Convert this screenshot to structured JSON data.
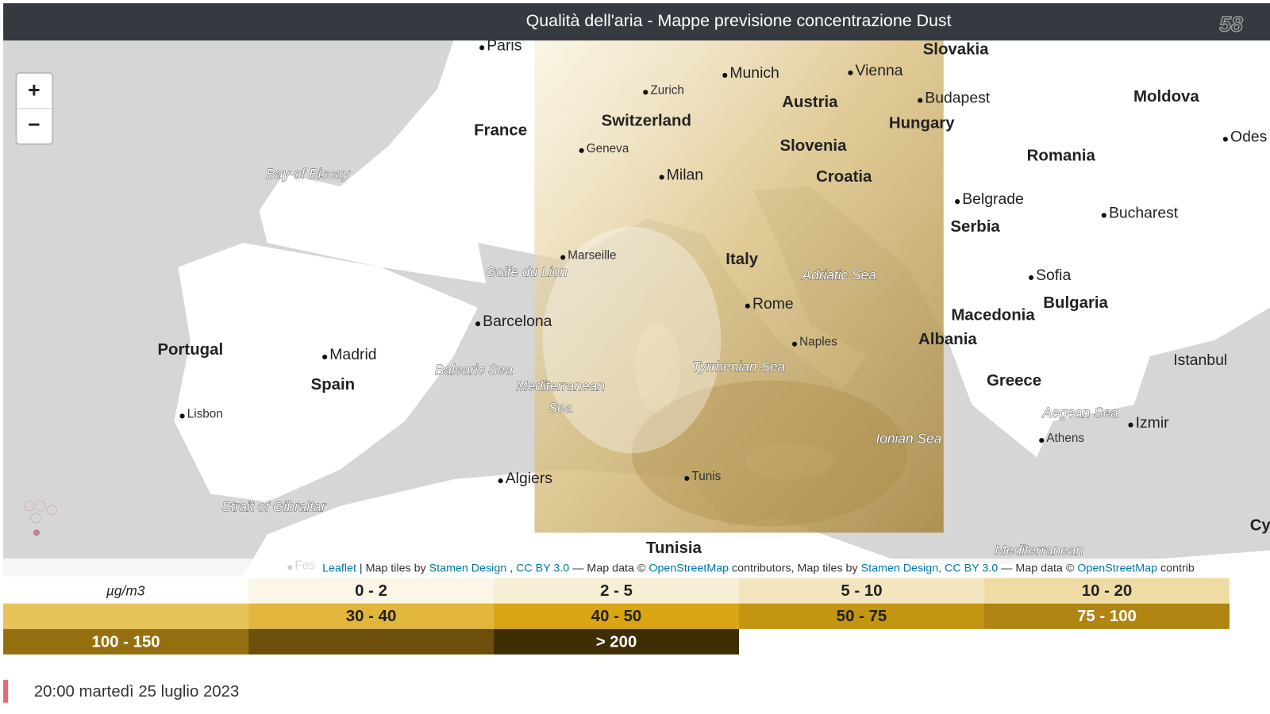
{
  "header": {
    "title": "Qualità dell'aria - Mappe previsione concentrazione Dust",
    "logo": "58"
  },
  "map": {
    "zoom_in": "+",
    "zoom_out": "−",
    "labels": [
      "Paris",
      "Slovakia",
      "Munich",
      "Vienna",
      "Zurich",
      "Austria",
      "Budapest",
      "Moldova",
      "France",
      "Switzerland",
      "Hungary",
      "Odes",
      "Slovenia",
      "Geneva",
      "Romania",
      "Bay of Biscay",
      "Milan",
      "Croatia",
      "Belgrade",
      "Bucharest",
      "Serbia",
      "Marseille",
      "Italy",
      "Golfe du Lion",
      "Adriatic Sea",
      "Sofia",
      "Bulgaria",
      "Macedonia",
      "Rome",
      "Barcelona",
      "Albania",
      "Naples",
      "Portugal",
      "Madrid",
      "Istanbul",
      "Tyrrhenian Sea",
      "Balearic Sea",
      "Greece",
      "Spain",
      "Mediterranean",
      "Sea",
      "Aegean Sea",
      "Izmir",
      "Lisbon",
      "Athens",
      "Ionian Sea",
      "Algiers",
      "Tunis",
      "Strait of Gibraltar",
      "Cy",
      "Tunisia",
      "Mediterranean",
      "Fes"
    ],
    "attribution": [
      {
        "text": "Leaflet",
        "link": true
      },
      {
        "text": "| Map tiles by",
        "link": false
      },
      {
        "text": "Stamen Design",
        "link": true
      },
      {
        "text": ",",
        "link": false
      },
      {
        "text": "CC BY 3.0",
        "link": true
      },
      {
        "text": "— Map data ©",
        "link": false
      },
      {
        "text": "OpenStreetMap",
        "link": true
      },
      {
        "text": "contributors, Map tiles by",
        "link": false
      },
      {
        "text": "Stamen Design, CC BY 3.0",
        "link": true
      },
      {
        "text": "— Map data ©",
        "link": false
      },
      {
        "text": "OpenStreetMap",
        "link": true
      },
      {
        "text": "contrib",
        "link": false
      }
    ]
  },
  "legend": {
    "unit": "µg/m3",
    "items": [
      {
        "label": "0 - 2",
        "color": "#fbf6e6"
      },
      {
        "label": "2 - 5",
        "color": "#f7efd5"
      },
      {
        "label": "5 - 10",
        "color": "#f3e6bf"
      },
      {
        "label": "10 - 20",
        "color": "#efdca4"
      },
      {
        "color": "#e7c35a"
      },
      {
        "label": "30 - 40",
        "color": "#e2b53c"
      },
      {
        "label": "40 - 50",
        "color": "#d9a514"
      },
      {
        "label": "50 - 75",
        "color": "#c49413"
      },
      {
        "label": "75 - 100",
        "color": "#b08512"
      },
      {
        "label": "100 - 150",
        "color": "#967010"
      },
      {
        "color": "#6b4f0a"
      },
      {
        "label": "> 200",
        "color": "#3e2e06"
      }
    ]
  },
  "timestamp": "20:00 martedì 25 luglio 2023"
}
